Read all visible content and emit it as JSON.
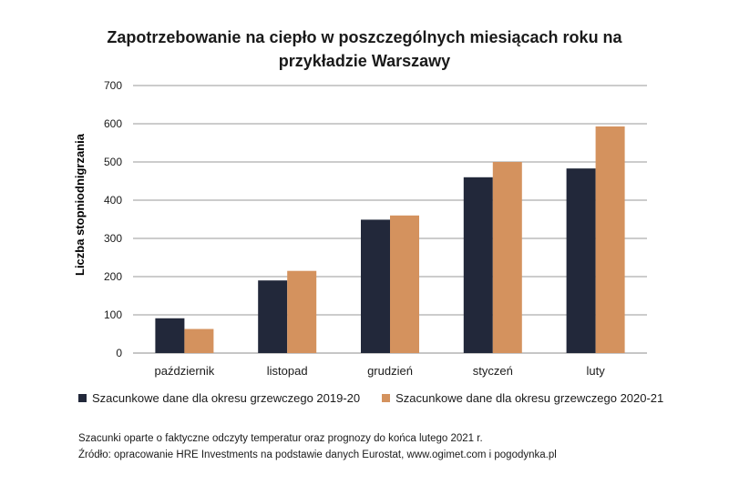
{
  "chart_data": {
    "type": "bar",
    "title_line1": "Zapotrzebowanie na ciepło w poszczególnych miesiącach roku na",
    "title_line2": "przykładzie Warszawy",
    "xlabel": "",
    "ylabel": "Liczba stopniodnigrzania",
    "ylim": [
      0,
      700
    ],
    "yticks": [
      0,
      100,
      200,
      300,
      400,
      500,
      600,
      700
    ],
    "categories": [
      "październik",
      "listopad",
      "grudzień",
      "styczeń",
      "luty"
    ],
    "series": [
      {
        "name": "Szacunkowe dane dla okresu grzewczego 2019-20",
        "color": "#22283a",
        "values": [
          91,
          190,
          349,
          460,
          483
        ]
      },
      {
        "name": "Szacunkowe dane dla okresu grzewczego 2020-21",
        "color": "#d4925e",
        "values": [
          63,
          215,
          360,
          500,
          593
        ]
      }
    ],
    "grid": true,
    "legend_position": "bottom"
  },
  "notes": {
    "line1": "Szacunki oparte o faktyczne odczyty temperatur oraz prognozy do końca lutego 2021 r.",
    "line2": "Źródło: opracowanie HRE Investments na podstawie danych Eurostat, www.ogimet.com i pogodynka.pl"
  }
}
